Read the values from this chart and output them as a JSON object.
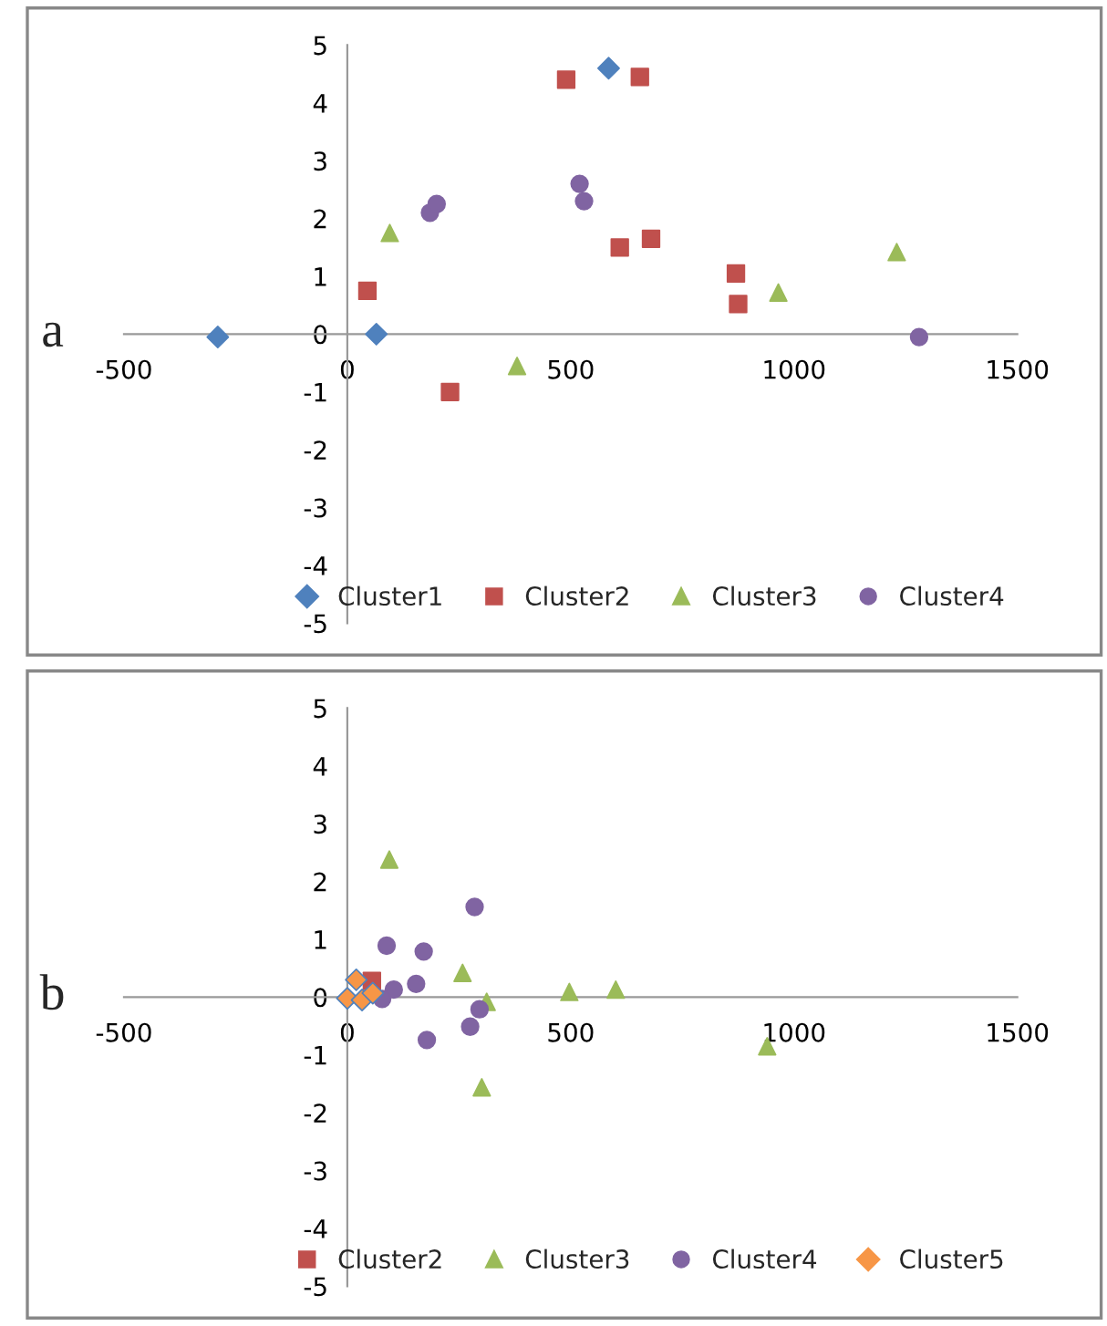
{
  "chart_data": [
    {
      "type": "scatter",
      "title": "a",
      "xlim": [
        -500,
        1500
      ],
      "ylim": [
        -5,
        5
      ],
      "xticks": [
        -500,
        0,
        500,
        1000,
        1500
      ],
      "yticks": [
        -5,
        -4,
        -3,
        -2,
        -1,
        0,
        1,
        2,
        3,
        4,
        5
      ],
      "grid": false,
      "legend": "bottom right",
      "series": [
        {
          "name": "Cluster1",
          "color": "#4f81bd",
          "marker": "diamond",
          "x": [
            -290,
            65,
            585
          ],
          "values": [
            -0.05,
            0,
            4.6
          ]
        },
        {
          "name": "Cluster2",
          "color": "#c0504d",
          "marker": "square",
          "x": [
            45,
            230,
            490,
            655,
            610,
            680,
            870,
            875
          ],
          "values": [
            0.75,
            -1.0,
            4.4,
            4.45,
            1.5,
            1.65,
            1.05,
            0.52
          ]
        },
        {
          "name": "Cluster3",
          "color": "#9bbb59",
          "marker": "triangle",
          "x": [
            95,
            380,
            965,
            1230
          ],
          "values": [
            1.75,
            -0.55,
            0.72,
            1.42
          ]
        },
        {
          "name": "Cluster4",
          "color": "#8064a2",
          "marker": "circle",
          "x": [
            185,
            200,
            520,
            530,
            1280
          ],
          "values": [
            2.1,
            2.25,
            2.6,
            2.3,
            -0.05
          ]
        }
      ]
    },
    {
      "type": "scatter",
      "title": "b",
      "xlim": [
        -500,
        1500
      ],
      "ylim": [
        -5,
        5
      ],
      "xticks": [
        -500,
        0,
        500,
        1000,
        1500
      ],
      "yticks": [
        -5,
        -4,
        -3,
        -2,
        -1,
        0,
        1,
        2,
        3,
        4,
        5
      ],
      "grid": false,
      "legend": "bottom right",
      "series": [
        {
          "name": "Cluster2",
          "color": "#c0504d",
          "marker": "square",
          "x": [
            55
          ],
          "values": [
            0.28
          ]
        },
        {
          "name": "Cluster3",
          "color": "#9bbb59",
          "marker": "triangle",
          "x": [
            94,
            258,
            312,
            497,
            601,
            301,
            940
          ],
          "values": [
            2.38,
            0.42,
            -0.08,
            0.09,
            0.13,
            -1.56,
            -0.85
          ]
        },
        {
          "name": "Cluster4",
          "color": "#8064a2",
          "marker": "circle",
          "x": [
            88,
            171,
            285,
            154,
            104,
            78,
            178,
            275,
            296
          ],
          "values": [
            0.89,
            0.79,
            1.56,
            0.23,
            0.13,
            -0.03,
            -0.74,
            -0.51,
            -0.21
          ]
        },
        {
          "name": "Cluster5",
          "color": "#f79646",
          "marker": "diamond",
          "x": [
            20,
            0,
            33,
            57
          ],
          "values": [
            0.3,
            -0.02,
            -0.05,
            0.07
          ]
        }
      ]
    }
  ]
}
